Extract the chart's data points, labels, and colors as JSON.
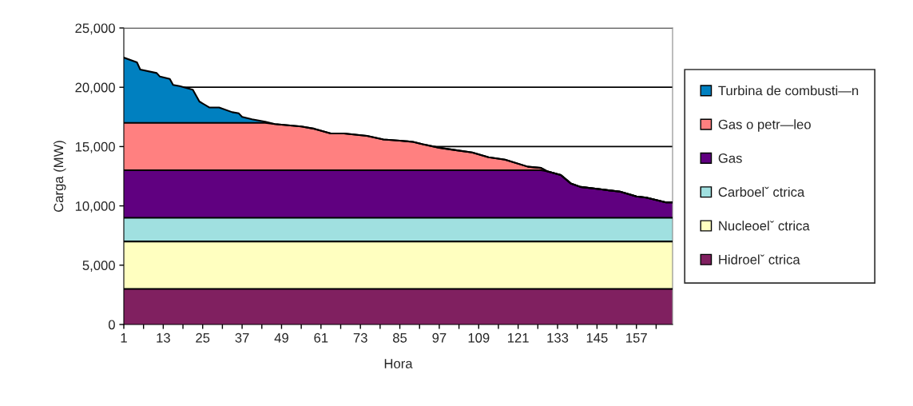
{
  "chart_data": {
    "type": "area",
    "stacked": true,
    "xlabel": "Hora",
    "ylabel": "Carga (MW)",
    "x": [
      1,
      5,
      6,
      11,
      12,
      15,
      16,
      18,
      22,
      24,
      27,
      30,
      34,
      36,
      37,
      40,
      44,
      47,
      55,
      59,
      64,
      68,
      75,
      80,
      85,
      89,
      92,
      97,
      102,
      107,
      112,
      117,
      124,
      128,
      130,
      134,
      137,
      140,
      146,
      152,
      157,
      160,
      163,
      166,
      168
    ],
    "series": [
      {
        "name": "Hidroelˇ ctrica",
        "color": "#802060",
        "values": [
          3000,
          3000,
          3000,
          3000,
          3000,
          3000,
          3000,
          3000,
          3000,
          3000,
          3000,
          3000,
          3000,
          3000,
          3000,
          3000,
          3000,
          3000,
          3000,
          3000,
          3000,
          3000,
          3000,
          3000,
          3000,
          3000,
          3000,
          3000,
          3000,
          3000,
          3000,
          3000,
          3000,
          3000,
          3000,
          3000,
          3000,
          3000,
          3000,
          3000,
          3000,
          3000,
          3000,
          3000,
          3000
        ]
      },
      {
        "name": "Nucleoelˇ ctrica",
        "color": "#ffffc0",
        "values": [
          4000,
          4000,
          4000,
          4000,
          4000,
          4000,
          4000,
          4000,
          4000,
          4000,
          4000,
          4000,
          4000,
          4000,
          4000,
          4000,
          4000,
          4000,
          4000,
          4000,
          4000,
          4000,
          4000,
          4000,
          4000,
          4000,
          4000,
          4000,
          4000,
          4000,
          4000,
          4000,
          4000,
          4000,
          4000,
          4000,
          4000,
          4000,
          4000,
          4000,
          4000,
          4000,
          4000,
          4000,
          4000
        ]
      },
      {
        "name": "Carboelˇ ctrica",
        "color": "#a0e0e0",
        "values": [
          2000,
          2000,
          2000,
          2000,
          2000,
          2000,
          2000,
          2000,
          2000,
          2000,
          2000,
          2000,
          2000,
          2000,
          2000,
          2000,
          2000,
          2000,
          2000,
          2000,
          2000,
          2000,
          2000,
          2000,
          2000,
          2000,
          2000,
          2000,
          2000,
          2000,
          2000,
          2000,
          2000,
          2000,
          2000,
          2000,
          2000,
          2000,
          2000,
          2000,
          2000,
          2000,
          2000,
          2000,
          2000
        ]
      },
      {
        "name": "Gas",
        "color": "#600080",
        "values": [
          4000,
          4000,
          4000,
          4000,
          4000,
          4000,
          4000,
          4000,
          4000,
          4000,
          4000,
          4000,
          4000,
          4000,
          4000,
          4000,
          4000,
          4000,
          4000,
          4000,
          4000,
          4000,
          4000,
          4000,
          4000,
          4000,
          4000,
          4000,
          4000,
          4000,
          4000,
          4000,
          4000,
          4000,
          3900,
          3600,
          2900,
          2600,
          2400,
          2200,
          1800,
          1700,
          1500,
          1300,
          1300
        ]
      },
      {
        "name": "Gas o petr—leo",
        "color": "#ff8080",
        "values": [
          4000,
          4000,
          4000,
          4000,
          4000,
          4000,
          4000,
          4000,
          4000,
          4000,
          4000,
          4000,
          4000,
          4000,
          4000,
          4000,
          4000,
          3900,
          3700,
          3500,
          3100,
          3100,
          2900,
          2600,
          2500,
          2400,
          2200,
          1900,
          1700,
          1500,
          1100,
          900,
          300,
          200,
          0,
          0,
          0,
          0,
          0,
          0,
          0,
          0,
          0,
          0,
          0
        ]
      },
      {
        "name": "Turbina de combusti—n",
        "color": "#0080c0",
        "values": [
          5500,
          5100,
          4500,
          4200,
          3900,
          3700,
          3200,
          3100,
          2800,
          1800,
          1300,
          1300,
          900,
          800,
          500,
          300,
          100,
          0,
          0,
          0,
          0,
          0,
          0,
          0,
          0,
          0,
          0,
          0,
          0,
          0,
          0,
          0,
          0,
          0,
          0,
          0,
          0,
          0,
          0,
          0,
          0,
          0,
          0,
          0,
          0
        ]
      }
    ],
    "xlim": [
      1,
      168
    ],
    "xticks": [
      1,
      {
        "value": 7,
        "label": null
      },
      13,
      {
        "value": 19,
        "label": null
      },
      25,
      {
        "value": 31,
        "label": null
      },
      37,
      {
        "value": 43,
        "label": null
      },
      49,
      {
        "value": 55,
        "label": null
      },
      61,
      {
        "value": 67,
        "label": null
      },
      73,
      {
        "value": 79,
        "label": null
      },
      85,
      {
        "value": 91,
        "label": null
      },
      97,
      {
        "value": 103,
        "label": null
      },
      109,
      {
        "value": 115,
        "label": null
      },
      121,
      {
        "value": 127,
        "label": null
      },
      133,
      {
        "value": 139,
        "label": null
      },
      145,
      {
        "value": 151,
        "label": null
      },
      157,
      {
        "value": 163,
        "label": null
      }
    ],
    "ylim": [
      0,
      25000
    ],
    "yticks": [
      0,
      {
        "value": 5000,
        "label": "5,000"
      },
      {
        "value": 10000,
        "label": "10,000"
      },
      {
        "value": 15000,
        "label": "15,000"
      },
      {
        "value": 20000,
        "label": "20,000"
      },
      {
        "value": 25000,
        "label": "25,000"
      }
    ],
    "grid": "y",
    "legend": "right"
  }
}
